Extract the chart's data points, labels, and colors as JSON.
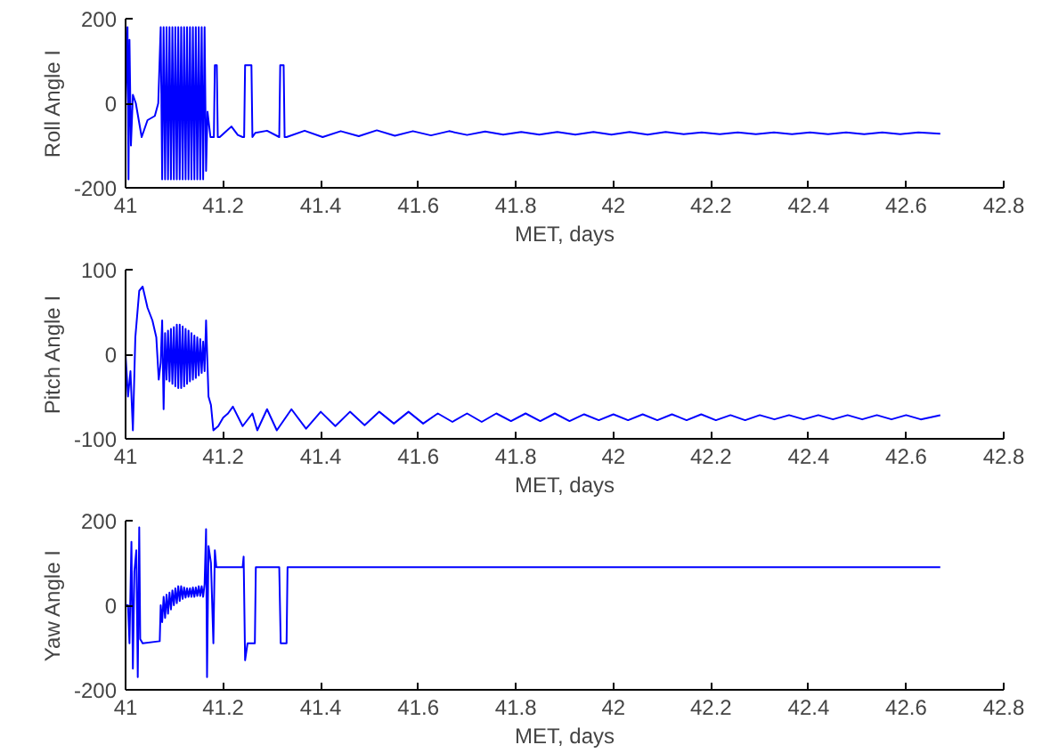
{
  "chart_data": [
    {
      "type": "line",
      "xlabel": "MET, days",
      "ylabel": "Roll Angle I",
      "xlim": [
        41,
        42.8
      ],
      "xticks": [
        41,
        41.2,
        41.4,
        41.6,
        41.8,
        42,
        42.2,
        42.4,
        42.6,
        42.8
      ],
      "ylim": [
        -200,
        200
      ],
      "yticks": [
        -200,
        0,
        200
      ],
      "grid": false,
      "line_style": "solid",
      "series": [
        {
          "color": "#0000ff",
          "x": [
            41.0,
            41.004,
            41.006,
            41.008,
            41.011,
            41.015,
            41.021,
            41.033,
            41.045,
            41.06,
            41.067,
            41.072,
            41.075,
            41.078,
            41.081,
            41.084,
            41.087,
            41.09,
            41.093,
            41.096,
            41.099,
            41.102,
            41.105,
            41.108,
            41.111,
            41.114,
            41.117,
            41.12,
            41.123,
            41.126,
            41.129,
            41.132,
            41.135,
            41.138,
            41.141,
            41.144,
            41.147,
            41.15,
            41.153,
            41.156,
            41.159,
            41.162,
            41.165,
            41.168,
            41.174,
            41.181,
            41.183,
            41.187,
            41.189,
            41.193,
            41.217,
            41.23,
            41.24,
            41.243,
            41.245,
            41.258,
            41.26,
            41.266,
            41.29,
            41.315,
            41.317,
            41.324,
            41.326,
            41.33,
            41.367,
            41.404,
            41.441,
            41.478,
            41.515,
            41.552,
            41.589,
            41.626,
            41.663,
            41.7,
            41.737,
            41.774,
            41.811,
            41.848,
            41.885,
            41.922,
            41.959,
            41.996,
            42.033,
            42.07,
            42.107,
            42.144,
            42.181,
            42.218,
            42.255,
            42.292,
            42.329,
            42.366,
            42.403,
            42.44,
            42.477,
            42.514,
            42.551,
            42.588,
            42.625,
            42.67
          ],
          "values": [
            0,
            180,
            -180,
            150,
            -100,
            20,
            0,
            -80,
            -40,
            -30,
            0,
            180,
            -180,
            180,
            -180,
            180,
            -180,
            180,
            -180,
            180,
            -180,
            180,
            -180,
            180,
            -180,
            180,
            -180,
            180,
            -180,
            180,
            -180,
            180,
            -180,
            180,
            -180,
            180,
            -180,
            180,
            -180,
            180,
            -180,
            180,
            -160,
            -20,
            -80,
            -80,
            90,
            90,
            -80,
            -80,
            -55,
            -75,
            -80,
            -80,
            90,
            90,
            -80,
            -70,
            -65,
            -80,
            90,
            90,
            -80,
            -80,
            -65,
            -80,
            -66,
            -78,
            -64,
            -77,
            -66,
            -76,
            -66,
            -75,
            -67,
            -74,
            -68,
            -74,
            -68,
            -74,
            -68,
            -74,
            -68,
            -74,
            -68,
            -73,
            -69,
            -73,
            -69,
            -73,
            -69,
            -73,
            -69,
            -73,
            -69,
            -73,
            -69,
            -73,
            -69,
            -72
          ]
        }
      ]
    },
    {
      "type": "line",
      "xlabel": "MET, days",
      "ylabel": "Pitch Angle I",
      "xlim": [
        41,
        42.8
      ],
      "xticks": [
        41,
        41.2,
        41.4,
        41.6,
        41.8,
        42,
        42.2,
        42.4,
        42.6,
        42.8
      ],
      "ylim": [
        -100,
        100
      ],
      "yticks": [
        -100,
        0,
        100
      ],
      "grid": false,
      "line_style": "solid",
      "series": [
        {
          "color": "#0000ff",
          "x": [
            41.0,
            41.005,
            41.01,
            41.015,
            41.02,
            41.028,
            41.035,
            41.045,
            41.055,
            41.063,
            41.068,
            41.072,
            41.075,
            41.078,
            41.081,
            41.084,
            41.087,
            41.09,
            41.093,
            41.096,
            41.099,
            41.102,
            41.105,
            41.108,
            41.111,
            41.114,
            41.117,
            41.12,
            41.123,
            41.126,
            41.129,
            41.132,
            41.135,
            41.138,
            41.141,
            41.144,
            41.147,
            41.15,
            41.153,
            41.156,
            41.159,
            41.162,
            41.165,
            41.17,
            41.175,
            41.18,
            41.19,
            41.2,
            41.21,
            41.22,
            41.24,
            41.26,
            41.27,
            41.29,
            41.31,
            41.34,
            41.37,
            41.4,
            41.43,
            41.46,
            41.49,
            41.52,
            41.55,
            41.58,
            41.61,
            41.64,
            41.67,
            41.7,
            41.73,
            41.76,
            41.79,
            41.82,
            41.85,
            41.88,
            41.91,
            41.94,
            41.97,
            42.0,
            42.03,
            42.06,
            42.09,
            42.12,
            42.15,
            42.18,
            42.21,
            42.24,
            42.27,
            42.3,
            42.33,
            42.36,
            42.39,
            42.42,
            42.45,
            42.48,
            42.51,
            42.54,
            42.57,
            42.6,
            42.63,
            42.67
          ],
          "values": [
            0,
            -50,
            -20,
            -90,
            20,
            75,
            80,
            55,
            40,
            20,
            -30,
            -10,
            40,
            -65,
            25,
            -30,
            28,
            -32,
            30,
            -35,
            32,
            -38,
            35,
            -40,
            35,
            -40,
            33,
            -38,
            30,
            -35,
            28,
            -32,
            25,
            -30,
            22,
            -28,
            20,
            -25,
            18,
            -22,
            15,
            -20,
            40,
            -50,
            -60,
            -90,
            -85,
            -75,
            -70,
            -62,
            -85,
            -70,
            -90,
            -65,
            -90,
            -65,
            -88,
            -68,
            -85,
            -68,
            -84,
            -68,
            -82,
            -68,
            -82,
            -70,
            -80,
            -70,
            -80,
            -70,
            -79,
            -70,
            -79,
            -70,
            -79,
            -71,
            -78,
            -71,
            -78,
            -71,
            -78,
            -71,
            -78,
            -71,
            -78,
            -72,
            -78,
            -72,
            -77,
            -72,
            -77,
            -72,
            -77,
            -72,
            -77,
            -72,
            -77,
            -72,
            -77,
            -72
          ]
        }
      ]
    },
    {
      "type": "line",
      "xlabel": "MET, days",
      "ylabel": "Yaw Angle I",
      "xlim": [
        41,
        42.8
      ],
      "xticks": [
        41,
        41.2,
        41.4,
        41.6,
        41.8,
        42,
        42.2,
        42.4,
        42.6,
        42.8
      ],
      "ylim": [
        -200,
        200
      ],
      "yticks": [
        -200,
        0,
        200
      ],
      "grid": false,
      "line_style": "solid",
      "series": [
        {
          "color": "#0000ff",
          "x": [
            41.0,
            41.005,
            41.008,
            41.012,
            41.015,
            41.018,
            41.022,
            41.025,
            41.028,
            41.03,
            41.035,
            41.07,
            41.072,
            41.075,
            41.078,
            41.081,
            41.084,
            41.087,
            41.09,
            41.093,
            41.096,
            41.099,
            41.102,
            41.105,
            41.108,
            41.111,
            41.114,
            41.117,
            41.12,
            41.123,
            41.126,
            41.129,
            41.132,
            41.135,
            41.138,
            41.141,
            41.144,
            41.147,
            41.15,
            41.153,
            41.156,
            41.159,
            41.162,
            41.165,
            41.167,
            41.17,
            41.175,
            41.18,
            41.183,
            41.186,
            41.24,
            41.242,
            41.245,
            41.25,
            41.265,
            41.267,
            41.315,
            41.318,
            41.33,
            41.332,
            42.67
          ],
          "values": [
            0,
            0,
            -90,
            150,
            -150,
            80,
            130,
            -170,
            184,
            -80,
            -90,
            -85,
            0,
            -40,
            20,
            -30,
            25,
            -20,
            30,
            -10,
            35,
            0,
            40,
            5,
            45,
            10,
            45,
            15,
            42,
            18,
            40,
            20,
            40,
            20,
            42,
            20,
            42,
            22,
            45,
            22,
            45,
            20,
            50,
            180,
            -170,
            140,
            100,
            -90,
            130,
            90,
            90,
            115,
            -130,
            -90,
            -90,
            90,
            90,
            -90,
            -90,
            90,
            90
          ]
        }
      ]
    }
  ]
}
